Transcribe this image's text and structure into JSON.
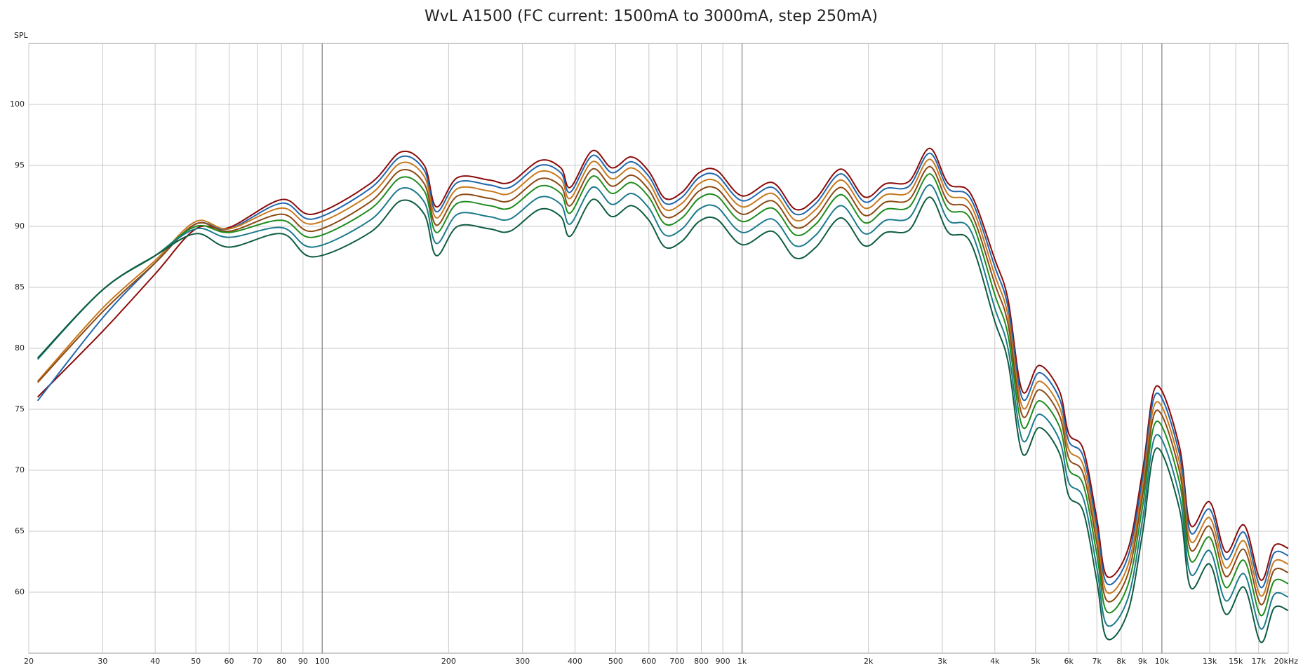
{
  "chart_data": {
    "type": "line",
    "title": "WvL A1500 (FC current: 1500mA to 3000mA, step 250mA)",
    "y_label": "SPL",
    "x_scale": "log",
    "grid": true,
    "xlim": [
      20,
      20000
    ],
    "ylim": [
      55,
      105
    ],
    "xticks": [
      20,
      30,
      40,
      50,
      60,
      70,
      80,
      90,
      100,
      200,
      300,
      400,
      500,
      600,
      700,
      800,
      900,
      {
        "value": 1000,
        "label": "1k"
      },
      {
        "value": 2000,
        "label": "2k"
      },
      {
        "value": 3000,
        "label": "3k"
      },
      {
        "value": 4000,
        "label": "4k"
      },
      {
        "value": 5000,
        "label": "5k"
      },
      {
        "value": 6000,
        "label": "6k"
      },
      {
        "value": 7000,
        "label": "7k"
      },
      {
        "value": 8000,
        "label": "8k"
      },
      {
        "value": 9000,
        "label": "9k"
      },
      {
        "value": 10000,
        "label": "10k"
      },
      {
        "value": 13000,
        "label": "13k"
      },
      {
        "value": 15000,
        "label": "15k"
      },
      {
        "value": 17000,
        "label": "17k"
      },
      {
        "value": 20000,
        "label": "20kHz"
      }
    ],
    "yticks": [
      60,
      65,
      70,
      75,
      80,
      85,
      90,
      95,
      100
    ],
    "x": [
      21,
      30,
      40,
      50,
      60,
      80,
      95,
      130,
      154,
      175,
      187,
      210,
      250,
      280,
      330,
      370,
      390,
      440,
      490,
      545,
      600,
      655,
      720,
      790,
      870,
      1000,
      1180,
      1340,
      1500,
      1720,
      1960,
      2200,
      2500,
      2800,
      3100,
      3500,
      4000,
      4300,
      4650,
      5100,
      5700,
      6000,
      6500,
      7000,
      7400,
      8300,
      9000,
      9700,
      11000,
      11700,
      13000,
      14200,
      15700,
      17200,
      18500,
      20000
    ],
    "series": [
      {
        "color": "#8b0a0a",
        "values": [
          76.0,
          81.4,
          86.1,
          89.8,
          89.9,
          92.2,
          91.0,
          93.5,
          96.1,
          95.0,
          91.6,
          94.0,
          93.8,
          93.6,
          95.4,
          94.8,
          93.2,
          96.2,
          94.8,
          95.7,
          94.5,
          92.3,
          92.8,
          94.4,
          94.6,
          92.5,
          93.6,
          91.4,
          92.3,
          94.7,
          92.4,
          93.5,
          93.7,
          96.4,
          93.5,
          92.7,
          87.3,
          84.0,
          76.5,
          78.6,
          76.5,
          73.0,
          71.7,
          66.0,
          61.3,
          63.5,
          70.0,
          76.9,
          72.0,
          65.5,
          67.4,
          63.3,
          65.5,
          61.0,
          63.8,
          63.6
        ]
      },
      {
        "color": "#2166ac",
        "values": [
          75.7,
          82.5,
          87.0,
          90.2,
          89.8,
          91.9,
          90.6,
          93.1,
          95.7,
          94.6,
          91.2,
          93.6,
          93.4,
          93.2,
          95.0,
          94.4,
          92.8,
          95.8,
          94.4,
          95.3,
          94.1,
          91.9,
          92.4,
          94.0,
          94.2,
          92.1,
          93.2,
          91.0,
          91.9,
          94.3,
          92.0,
          93.1,
          93.3,
          96.0,
          93.1,
          92.3,
          86.7,
          83.4,
          75.9,
          78.0,
          75.9,
          72.4,
          71.1,
          65.4,
          60.7,
          62.9,
          69.4,
          76.3,
          71.4,
          64.9,
          66.8,
          62.7,
          64.9,
          60.4,
          63.2,
          63.0
        ]
      },
      {
        "color": "#c8781e",
        "values": [
          77.3,
          83.3,
          87.2,
          90.4,
          89.8,
          91.5,
          90.2,
          92.6,
          95.2,
          94.1,
          90.7,
          93.1,
          92.9,
          92.7,
          94.5,
          93.9,
          92.3,
          95.3,
          93.9,
          94.8,
          93.6,
          91.4,
          91.9,
          93.5,
          93.7,
          91.6,
          92.7,
          90.5,
          91.4,
          93.8,
          91.5,
          92.6,
          92.8,
          95.5,
          92.6,
          91.8,
          86.0,
          82.7,
          75.2,
          77.3,
          75.2,
          71.7,
          70.4,
          64.7,
          60.0,
          62.2,
          68.7,
          75.6,
          70.7,
          64.2,
          66.1,
          62.0,
          64.2,
          59.7,
          62.5,
          62.3
        ]
      },
      {
        "color": "#8b4a14",
        "values": [
          77.2,
          83.0,
          87.0,
          90.2,
          89.6,
          91.0,
          89.6,
          92.0,
          94.6,
          93.5,
          90.1,
          92.5,
          92.3,
          92.1,
          93.9,
          93.3,
          91.7,
          94.7,
          93.3,
          94.2,
          93.0,
          90.8,
          91.3,
          92.9,
          93.1,
          91.0,
          92.1,
          89.9,
          90.8,
          93.2,
          90.9,
          92.0,
          92.2,
          94.9,
          92.0,
          91.2,
          85.3,
          82.0,
          74.5,
          76.6,
          74.5,
          71.0,
          69.7,
          64.0,
          59.3,
          61.5,
          68.0,
          74.9,
          70.0,
          63.5,
          65.4,
          61.3,
          63.5,
          59.0,
          61.8,
          61.6
        ]
      },
      {
        "color": "#1e8c1e",
        "values": [
          79.2,
          84.8,
          87.6,
          90.0,
          89.5,
          90.5,
          89.1,
          91.4,
          94.0,
          92.9,
          89.5,
          91.9,
          91.7,
          91.5,
          93.3,
          92.7,
          91.1,
          94.1,
          92.7,
          93.6,
          92.4,
          90.2,
          90.7,
          92.3,
          92.5,
          90.4,
          91.5,
          89.3,
          90.2,
          92.6,
          90.3,
          91.4,
          91.6,
          94.3,
          91.4,
          90.6,
          84.4,
          81.1,
          73.6,
          75.7,
          73.6,
          70.1,
          68.8,
          63.1,
          58.4,
          60.6,
          67.1,
          74.0,
          69.1,
          62.6,
          64.5,
          60.4,
          62.6,
          58.1,
          60.9,
          60.7
        ]
      },
      {
        "color": "#1c7a8c",
        "values": [
          79.1,
          84.8,
          87.6,
          89.8,
          89.1,
          89.9,
          88.3,
          90.5,
          93.1,
          92.0,
          88.6,
          91.0,
          90.8,
          90.6,
          92.4,
          91.8,
          90.2,
          93.2,
          91.8,
          92.7,
          91.5,
          89.3,
          89.8,
          91.4,
          91.6,
          89.5,
          90.6,
          88.4,
          89.3,
          91.7,
          89.4,
          90.5,
          90.7,
          93.4,
          90.5,
          89.7,
          83.3,
          80.0,
          72.5,
          74.6,
          72.5,
          69.0,
          67.7,
          62.0,
          57.3,
          59.5,
          66.0,
          72.9,
          68.0,
          61.5,
          63.4,
          59.3,
          61.5,
          57.0,
          59.8,
          59.6
        ]
      },
      {
        "color": "#0d5c40",
        "values": [
          79.2,
          84.8,
          87.6,
          89.4,
          88.3,
          89.4,
          87.5,
          89.5,
          92.1,
          91.0,
          87.6,
          90.0,
          89.8,
          89.6,
          91.4,
          90.8,
          89.2,
          92.2,
          90.8,
          91.7,
          90.5,
          88.3,
          88.8,
          90.4,
          90.6,
          88.5,
          89.6,
          87.4,
          88.3,
          90.7,
          88.4,
          89.5,
          89.7,
          92.4,
          89.5,
          88.7,
          82.2,
          78.9,
          71.4,
          73.5,
          71.4,
          67.9,
          66.6,
          60.9,
          56.2,
          58.4,
          64.9,
          71.8,
          66.9,
          60.4,
          62.3,
          58.2,
          60.4,
          55.9,
          58.7,
          58.5
        ]
      }
    ]
  }
}
